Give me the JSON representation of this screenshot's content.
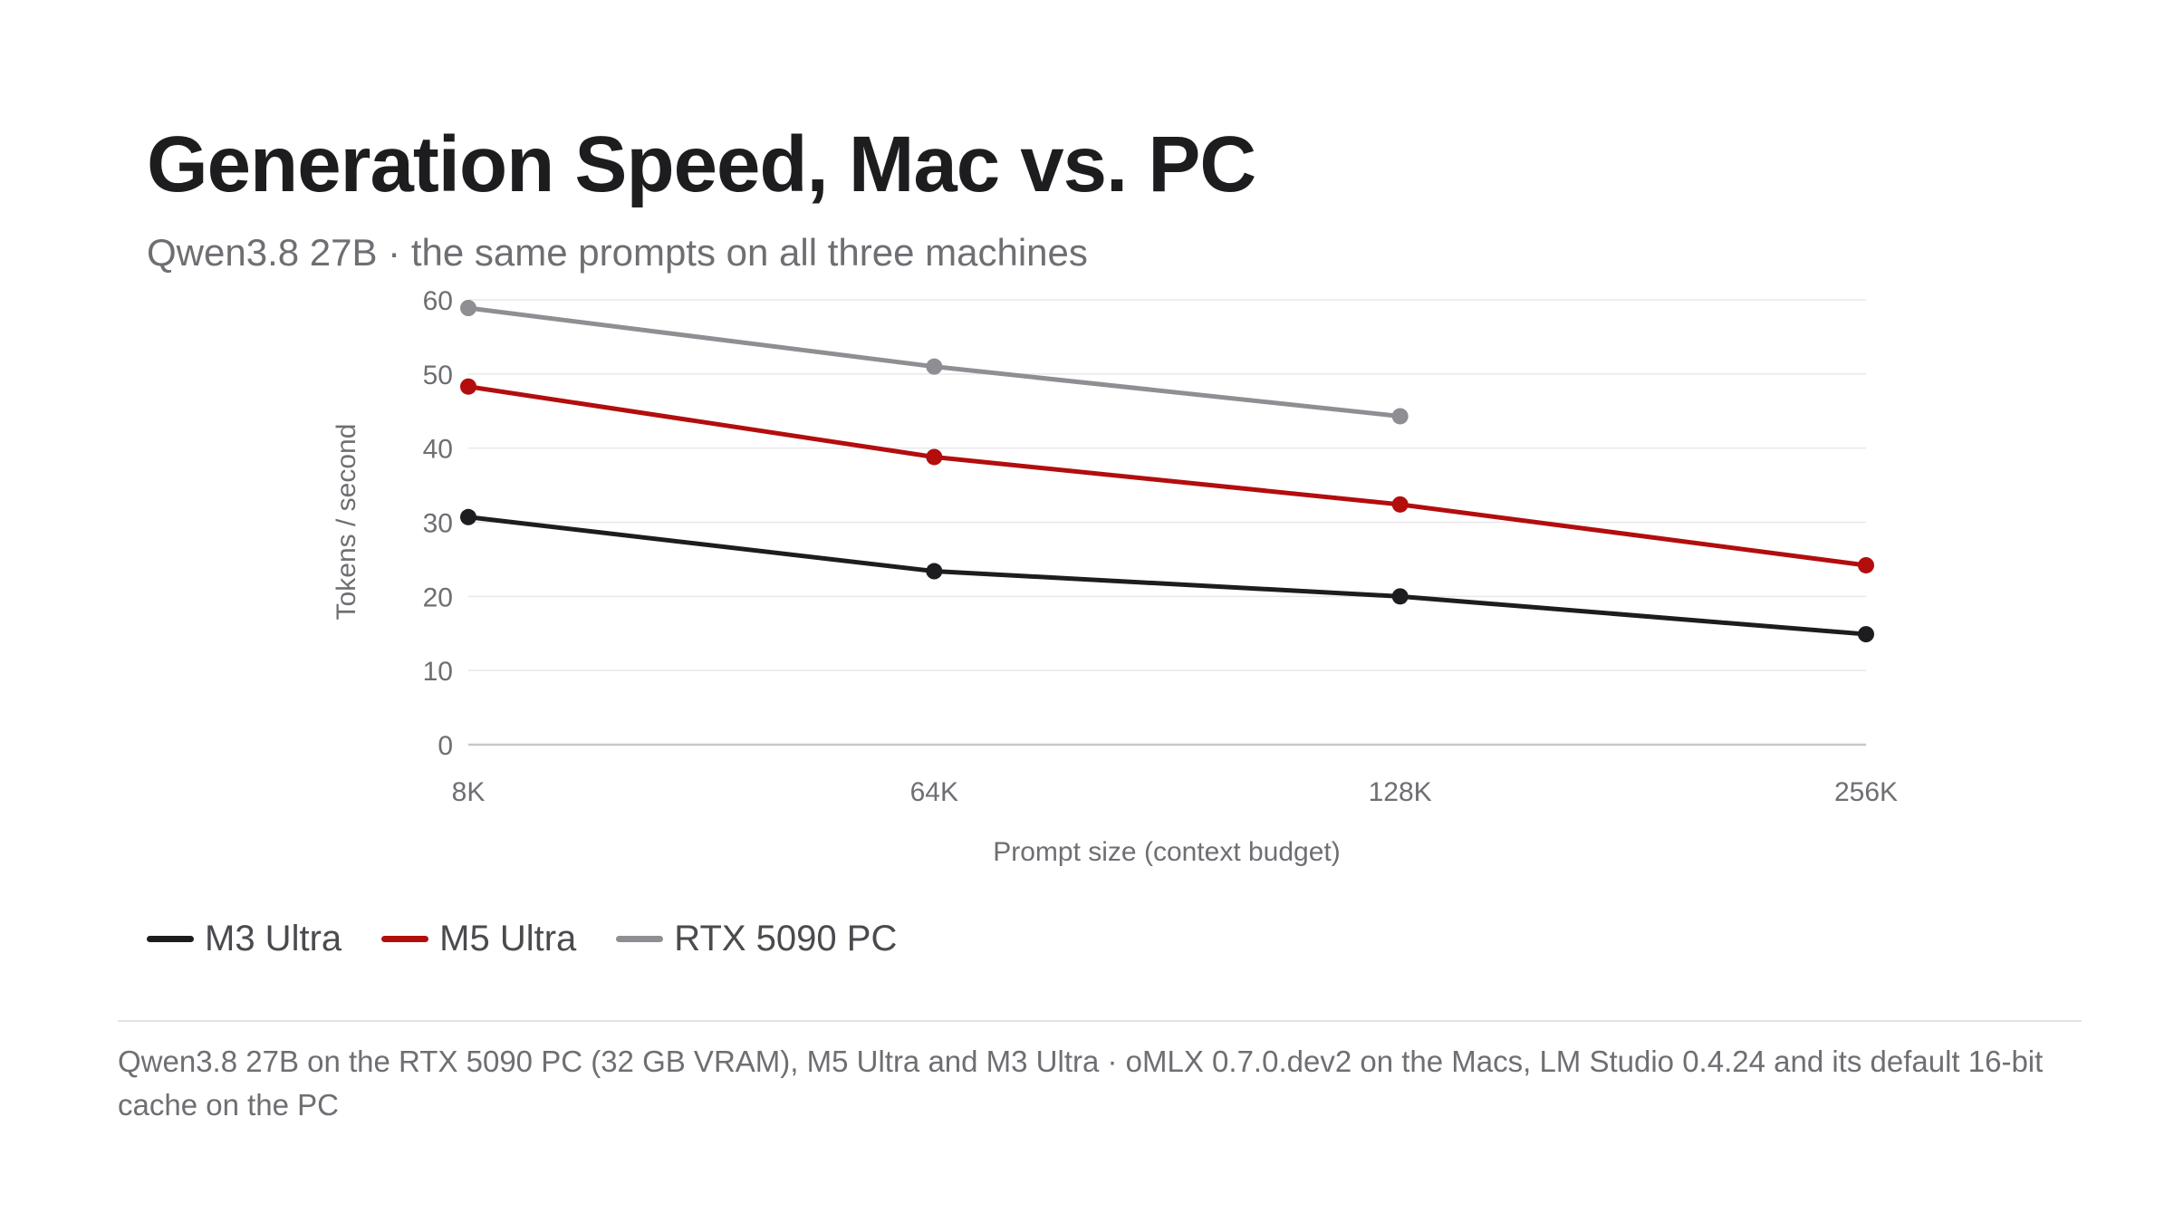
{
  "title": "Generation Speed, Mac vs. PC",
  "subtitle": "Qwen3.8 27B · the same prompts on all three machines",
  "chart_data": {
    "type": "line",
    "categories": [
      "8K",
      "64K",
      "128K",
      "256K"
    ],
    "xlabel": "Prompt size (context budget)",
    "ylabel": "Tokens / second",
    "ylim": [
      0,
      60
    ],
    "yticks": [
      0,
      10,
      20,
      30,
      40,
      50,
      60
    ],
    "grid": true,
    "legend_position": "bottom-left",
    "series": [
      {
        "name": "M3 Ultra",
        "color": "#1d1d1f",
        "values": [
          30.7,
          23.4,
          20.0,
          14.9
        ]
      },
      {
        "name": "M5 Ultra",
        "color": "#b30d0d",
        "values": [
          48.3,
          38.8,
          32.4,
          24.2
        ]
      },
      {
        "name": "RTX 5090 PC",
        "color": "#8e8e93",
        "values": [
          58.9,
          51.0,
          44.3,
          null
        ]
      }
    ]
  },
  "footnote": "Qwen3.8 27B on the RTX 5090 PC (32 GB VRAM), M5 Ultra and M3 Ultra · oMLX 0.7.0.dev2 on the Macs, LM Studio 0.4.24 and its default 16-bit cache on the PC"
}
